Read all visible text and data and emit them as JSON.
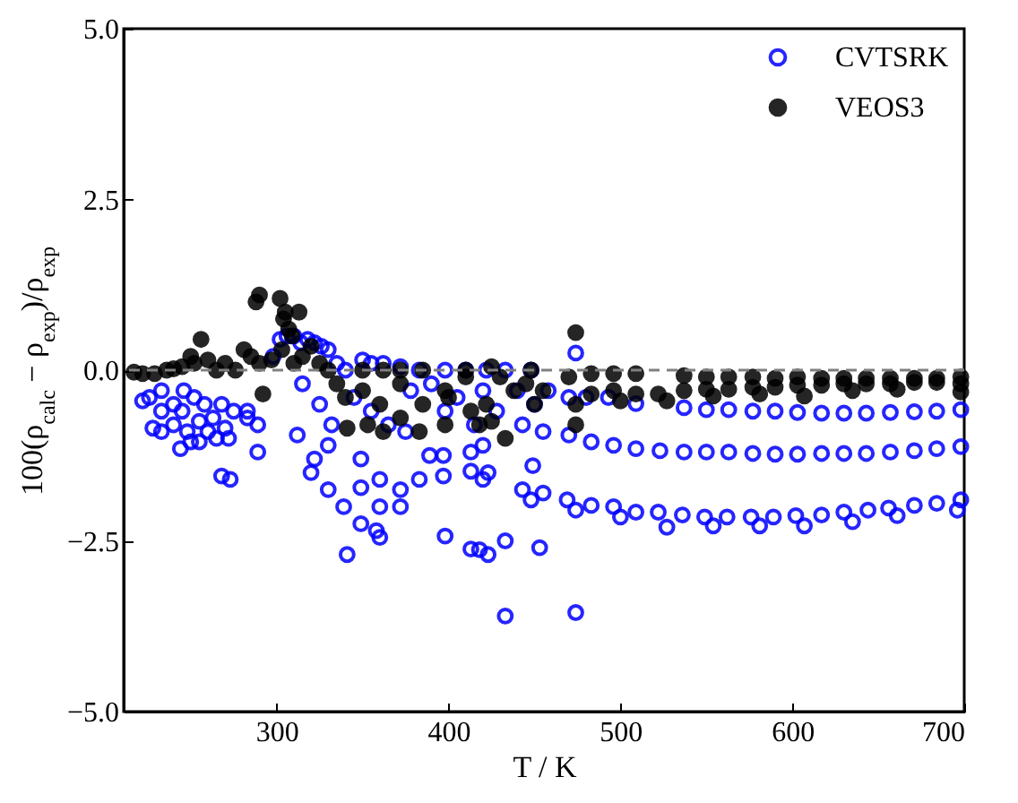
{
  "chart_data": {
    "type": "scatter",
    "xlabel": "T / K",
    "ylabel": "100(ρ$_{calc}$ − ρ$_{exp}$)/ρ$_{exp}$",
    "xlim": [
      211,
      700
    ],
    "xticks": [
      300,
      400,
      500,
      600,
      700
    ],
    "ylim": [
      -5,
      5
    ],
    "yticks": [
      {
        "value": -5,
        "label": "−5.0"
      },
      {
        "value": -2.5,
        "label": "−2.5"
      },
      {
        "value": 0,
        "label": "0.0"
      },
      {
        "value": 2.5,
        "label": "2.5"
      },
      {
        "value": 5,
        "label": "5.0"
      }
    ],
    "grid": false,
    "legend": "top right",
    "marker": "circle",
    "ref_lines": [
      {
        "axis": "y",
        "value": 0,
        "color": "#808080",
        "line_style": "dashed"
      }
    ],
    "series": [
      {
        "name": "CVTSRK",
        "color": "#0000ff",
        "x": [
          509,
          537,
          550,
          563,
          577,
          590,
          603,
          617,
          630,
          643,
          657,
          671,
          684,
          698,
          470,
          483,
          496,
          509,
          523,
          537,
          550,
          563,
          577,
          590,
          603,
          617,
          630,
          643,
          657,
          671,
          684,
          698,
          469,
          474,
          483,
          496,
          500,
          509,
          522,
          527,
          536,
          549,
          554,
          562,
          576,
          581,
          589,
          602,
          607,
          617,
          630,
          635,
          644,
          656,
          661,
          671,
          684,
          696,
          698,
          474,
          474,
          433,
          433,
          453,
          423,
          418,
          413,
          398,
          341,
          339,
          349,
          358,
          360,
          372,
          360,
          372,
          383,
          397,
          360,
          349,
          330,
          320,
          322,
          349,
          312,
          330,
          397,
          389,
          413,
          423,
          420,
          413,
          443,
          448,
          449,
          455,
          455,
          443,
          420,
          289,
          268,
          273,
          244,
          228,
          222,
          226,
          289,
          283,
          283,
          233,
          233,
          233,
          240,
          240,
          245,
          248,
          250,
          252,
          255,
          255,
          258,
          260,
          263,
          265,
          268,
          270,
          272,
          275,
          246,
          298,
          302,
          306,
          310,
          314,
          318,
          322,
          326,
          330,
          335,
          340,
          350,
          355,
          362,
          372,
          383,
          398,
          410,
          422,
          433,
          448,
          315,
          325,
          332,
          345,
          355,
          365,
          375,
          378,
          390,
          398,
          405,
          415,
          420,
          428,
          440,
          450,
          458,
          470,
          480,
          493
        ],
        "values": [
          -0.49,
          -0.55,
          -0.58,
          -0.58,
          -0.6,
          -0.6,
          -0.62,
          -0.63,
          -0.63,
          -0.63,
          -0.62,
          -0.61,
          -0.6,
          -0.58,
          -0.95,
          -1.05,
          -1.1,
          -1.15,
          -1.18,
          -1.2,
          -1.2,
          -1.2,
          -1.22,
          -1.23,
          -1.23,
          -1.22,
          -1.22,
          -1.22,
          -1.2,
          -1.18,
          -1.15,
          -1.12,
          -1.9,
          -2.05,
          -1.98,
          -2.0,
          -2.15,
          -2.08,
          -2.08,
          -2.3,
          -2.12,
          -2.15,
          -2.28,
          -2.15,
          -2.15,
          -2.28,
          -2.15,
          -2.13,
          -2.28,
          -2.12,
          -2.08,
          -2.22,
          -2.05,
          -2.02,
          -2.13,
          -1.98,
          -1.95,
          -2.05,
          -1.9,
          0.25,
          -3.55,
          -3.6,
          -2.5,
          -2.6,
          -2.7,
          -2.63,
          -2.62,
          -2.43,
          -2.7,
          -2.0,
          -2.25,
          -2.35,
          -2.45,
          -2.0,
          -2.0,
          -1.75,
          -1.6,
          -1.55,
          -1.6,
          -1.72,
          -1.75,
          -1.5,
          -1.3,
          -1.3,
          -0.95,
          -1.1,
          -1.25,
          -1.25,
          -1.48,
          -1.5,
          -1.6,
          -1.2,
          -1.75,
          -1.9,
          -1.4,
          -1.8,
          -0.9,
          -0.8,
          -1.1,
          -1.2,
          -1.55,
          -1.6,
          -1.15,
          -0.85,
          -0.45,
          -0.4,
          -0.8,
          -0.7,
          -0.6,
          -0.3,
          -0.6,
          -0.9,
          -0.5,
          -0.8,
          -0.6,
          -0.9,
          -1.05,
          -0.4,
          -0.75,
          -1.05,
          -0.5,
          -0.9,
          -0.7,
          -1.0,
          -0.5,
          -0.85,
          -1.0,
          -0.6,
          -0.3,
          0.2,
          0.45,
          0.5,
          0.5,
          0.4,
          0.45,
          0.4,
          0.35,
          0.3,
          0.1,
          0.0,
          0.15,
          0.1,
          0.1,
          0.05,
          0.0,
          0.0,
          0.0,
          0.0,
          0.0,
          0.0,
          -0.2,
          -0.5,
          -0.8,
          -0.4,
          -0.6,
          -0.8,
          -0.9,
          -0.3,
          -0.2,
          -0.6,
          -0.4,
          -0.8,
          -0.3,
          -0.6,
          -0.3,
          -0.5,
          -0.3,
          -0.4,
          -0.4,
          -0.4
        ]
      },
      {
        "name": "VEOS3",
        "color": "#000000",
        "x": [
          483,
          496,
          509,
          537,
          550,
          563,
          577,
          590,
          603,
          617,
          630,
          643,
          657,
          671,
          684,
          698,
          483,
          496,
          509,
          522,
          537,
          550,
          563,
          577,
          590,
          603,
          617,
          630,
          643,
          657,
          671,
          684,
          698,
          500,
          527,
          554,
          581,
          607,
          635,
          661,
          698,
          217,
          222,
          229,
          236,
          240,
          245,
          250,
          252,
          256,
          260,
          265,
          270,
          276,
          281,
          285,
          288,
          290,
          292,
          290,
          297,
          302,
          304,
          305,
          307,
          309,
          313,
          303,
          310,
          315,
          320,
          325,
          330,
          335,
          340,
          341,
          350,
          353,
          360,
          362,
          372,
          372,
          383,
          385,
          398,
          398,
          400,
          410,
          413,
          418,
          422,
          425,
          430,
          433,
          438,
          445,
          448,
          450,
          455,
          470,
          474,
          474,
          474,
          350,
          362,
          372,
          385,
          410,
          425
        ],
        "values": [
          -0.05,
          -0.05,
          -0.05,
          -0.08,
          -0.1,
          -0.1,
          -0.1,
          -0.12,
          -0.1,
          -0.12,
          -0.12,
          -0.12,
          -0.12,
          -0.12,
          -0.12,
          -0.1,
          -0.35,
          -0.3,
          -0.35,
          -0.35,
          -0.3,
          -0.28,
          -0.28,
          -0.25,
          -0.25,
          -0.22,
          -0.22,
          -0.2,
          -0.2,
          -0.2,
          -0.18,
          -0.18,
          -0.2,
          -0.45,
          -0.45,
          -0.38,
          -0.35,
          -0.38,
          -0.3,
          -0.28,
          -0.32,
          -0.03,
          -0.05,
          -0.05,
          0.0,
          0.02,
          0.05,
          0.2,
          0.1,
          0.45,
          0.15,
          0.0,
          0.1,
          0.0,
          0.3,
          0.2,
          1.0,
          1.1,
          -0.35,
          0.1,
          0.15,
          1.05,
          0.75,
          0.85,
          0.6,
          0.5,
          0.85,
          0.3,
          0.1,
          0.2,
          0.35,
          0.1,
          0.0,
          -0.2,
          -0.4,
          -0.85,
          -0.3,
          -0.8,
          -0.5,
          -0.9,
          -0.7,
          -0.2,
          -0.9,
          -0.5,
          -0.8,
          -0.3,
          -0.4,
          -0.1,
          -0.6,
          -0.8,
          -0.5,
          -0.75,
          -0.1,
          -1.0,
          -0.3,
          -0.2,
          0.0,
          -0.5,
          -0.3,
          -0.1,
          0.55,
          -0.8,
          -0.5,
          0.0,
          0.0,
          0.0,
          0.0,
          0.0,
          0.05
        ]
      }
    ]
  }
}
